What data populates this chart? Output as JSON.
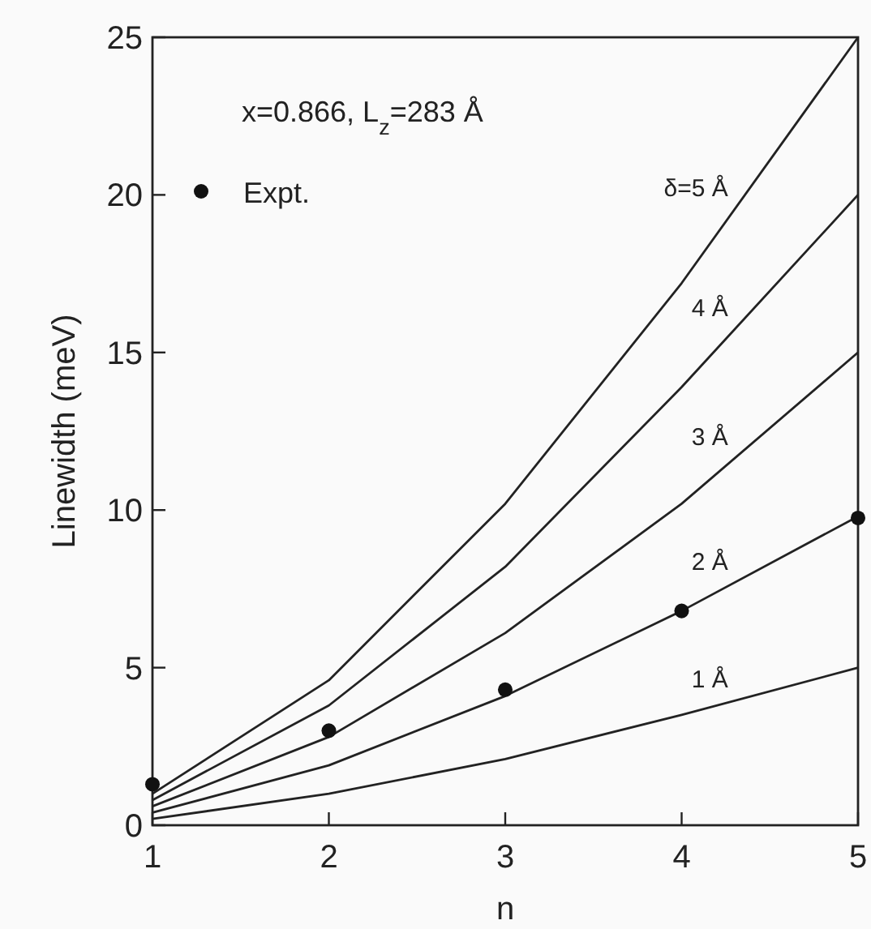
{
  "chart_data": {
    "type": "line",
    "xlabel": "n",
    "ylabel": "Linewidth (meV)",
    "annotations": [
      "x=0.866, L$_{z}$=283 Å"
    ],
    "x": [
      1,
      2,
      3,
      4,
      5
    ],
    "series": [
      {
        "name": "δ=5 Å",
        "color": "#222222",
        "values": [
          1.0,
          4.6,
          10.2,
          17.2,
          25
        ]
      },
      {
        "name": "4 Å",
        "color": "#222222",
        "values": [
          0.8,
          3.8,
          8.2,
          13.9,
          20
        ]
      },
      {
        "name": "3 Å",
        "color": "#222222",
        "values": [
          0.6,
          2.8,
          6.1,
          10.2,
          15
        ]
      },
      {
        "name": "2 Å",
        "color": "#222222",
        "values": [
          0.4,
          1.9,
          4.1,
          6.8,
          9.8
        ]
      },
      {
        "name": "1 Å",
        "color": "#222222",
        "values": [
          0.2,
          1.0,
          2.1,
          3.5,
          5.0
        ]
      },
      {
        "name": "Expt.",
        "type": "scatter",
        "marker": "circle",
        "color": "#111111",
        "values": [
          1.3,
          3.0,
          4.3,
          6.8,
          9.75
        ]
      }
    ],
    "xlim": [
      1,
      5
    ],
    "xticks": [
      1,
      2,
      3,
      4,
      5
    ],
    "ylim": [
      0,
      25
    ],
    "yticks": [
      0,
      5,
      10,
      15,
      20,
      25
    ],
    "grid": false,
    "legend": "top left",
    "line_style": "solid"
  }
}
